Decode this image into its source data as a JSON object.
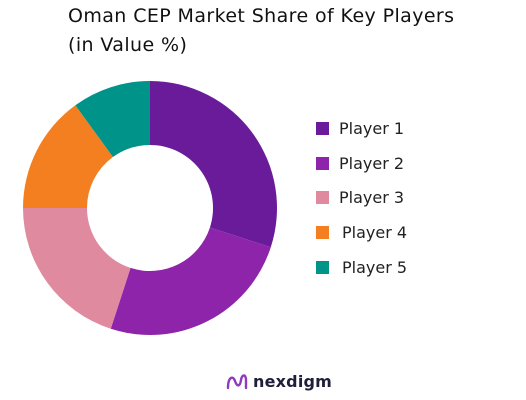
{
  "chart_data": {
    "type": "pie",
    "title_lines": [
      "Oman CEP Market Share of Key Players",
      "(in Value %)"
    ],
    "categories": [
      "Player 1",
      "Player 2",
      "Player 3",
      "Player 4",
      "Player 5"
    ],
    "values": [
      30,
      25,
      20,
      15,
      10
    ],
    "colors": [
      "#6a1b9a",
      "#8e24aa",
      "#e08aa0",
      "#f47f20",
      "#00938a"
    ],
    "donut": true,
    "legend_position": "right"
  },
  "footer": {
    "brand": "nexdigm",
    "logo_icon": "nexdigm-logo-icon",
    "logo_color": "#8e3bbf"
  }
}
